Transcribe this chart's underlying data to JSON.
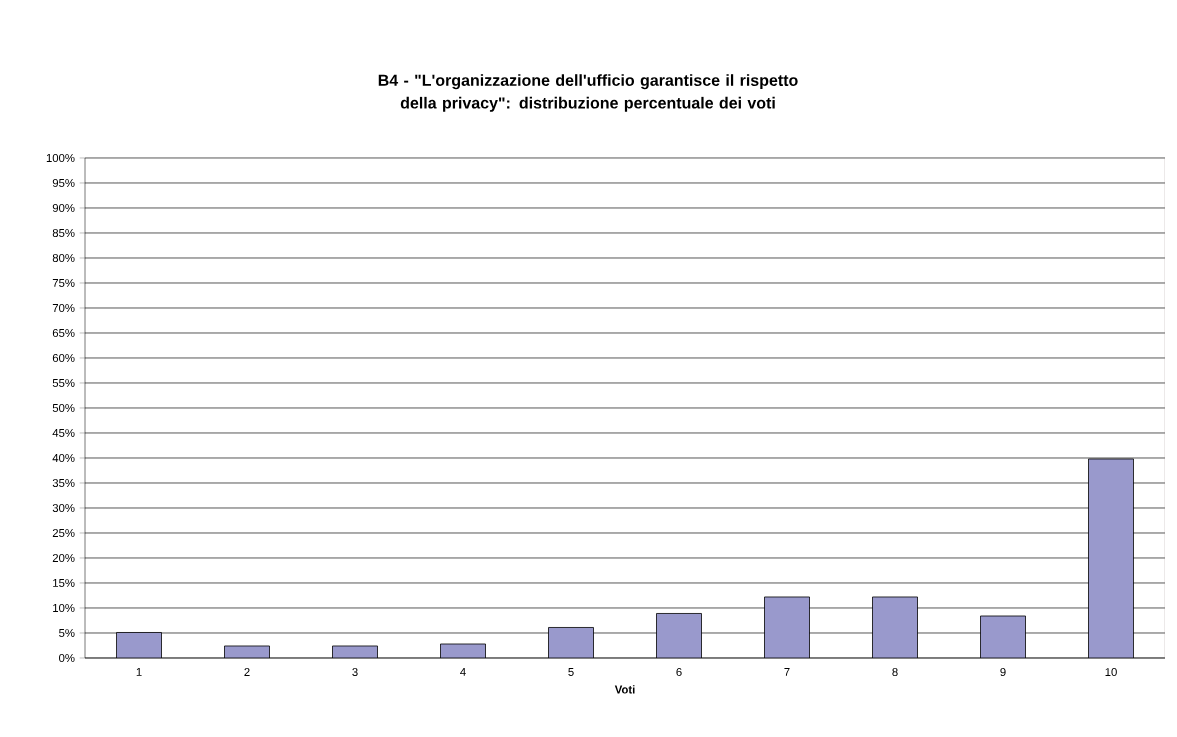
{
  "chart_data": {
    "type": "bar",
    "title": "B4 - \"L'organizzazione dell'ufficio garantisce il rispetto della privacy\": distribuzione percentuale dei voti",
    "xlabel": "Voti",
    "categories": [
      "1",
      "2",
      "3",
      "4",
      "5",
      "6",
      "7",
      "8",
      "9",
      "10"
    ],
    "values": [
      5.1,
      2.4,
      2.4,
      2.8,
      6.1,
      8.9,
      12.2,
      12.2,
      8.4,
      39.8
    ],
    "color": "#9999cc",
    "ylim": [
      0,
      100
    ],
    "yticks": [
      {
        "value": 0,
        "label": "0%"
      },
      {
        "value": 5,
        "label": "5%"
      },
      {
        "value": 10,
        "label": "10%"
      },
      {
        "value": 15,
        "label": "15%"
      },
      {
        "value": 20,
        "label": "20%"
      },
      {
        "value": 25,
        "label": "25%"
      },
      {
        "value": 30,
        "label": "30%"
      },
      {
        "value": 35,
        "label": "35%"
      },
      {
        "value": 40,
        "label": "40%"
      },
      {
        "value": 45,
        "label": "45%"
      },
      {
        "value": 50,
        "label": "50%"
      },
      {
        "value": 55,
        "label": "55%"
      },
      {
        "value": 60,
        "label": "60%"
      },
      {
        "value": 65,
        "label": "65%"
      },
      {
        "value": 70,
        "label": "70%"
      },
      {
        "value": 75,
        "label": "75%"
      },
      {
        "value": 80,
        "label": "80%"
      },
      {
        "value": 85,
        "label": "85%"
      },
      {
        "value": 90,
        "label": "90%"
      },
      {
        "value": 95,
        "label": "95%"
      },
      {
        "value": 100,
        "label": "100%"
      }
    ],
    "grid": "y"
  }
}
